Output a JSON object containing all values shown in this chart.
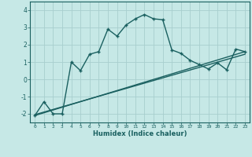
{
  "xlabel": "Humidex (Indice chaleur)",
  "bg_color": "#c6e8e6",
  "grid_color": "#a8cece",
  "line_color": "#1a6060",
  "xlim": [
    -0.5,
    23.5
  ],
  "ylim": [
    -2.5,
    4.5
  ],
  "yticks": [
    -2,
    -1,
    0,
    1,
    2,
    3,
    4
  ],
  "xticks": [
    0,
    1,
    2,
    3,
    4,
    5,
    6,
    7,
    8,
    9,
    10,
    11,
    12,
    13,
    14,
    15,
    16,
    17,
    18,
    19,
    20,
    21,
    22,
    23
  ],
  "curve_x": [
    0,
    1,
    2,
    3,
    4,
    5,
    6,
    7,
    8,
    9,
    10,
    11,
    12,
    13,
    14,
    15,
    16,
    17,
    18,
    19,
    20,
    21,
    22,
    23
  ],
  "curve_y": [
    -2.1,
    -1.3,
    -2.0,
    -2.0,
    1.0,
    0.5,
    1.45,
    1.6,
    2.9,
    2.5,
    3.15,
    3.5,
    3.75,
    3.5,
    3.45,
    1.7,
    1.5,
    1.1,
    0.85,
    0.6,
    0.95,
    0.55,
    1.75,
    1.6
  ],
  "line_x": [
    0,
    23
  ],
  "line_y": [
    -2.1,
    1.6
  ],
  "line2_x": [
    0,
    23
  ],
  "line2_y": [
    -2.05,
    1.45
  ]
}
